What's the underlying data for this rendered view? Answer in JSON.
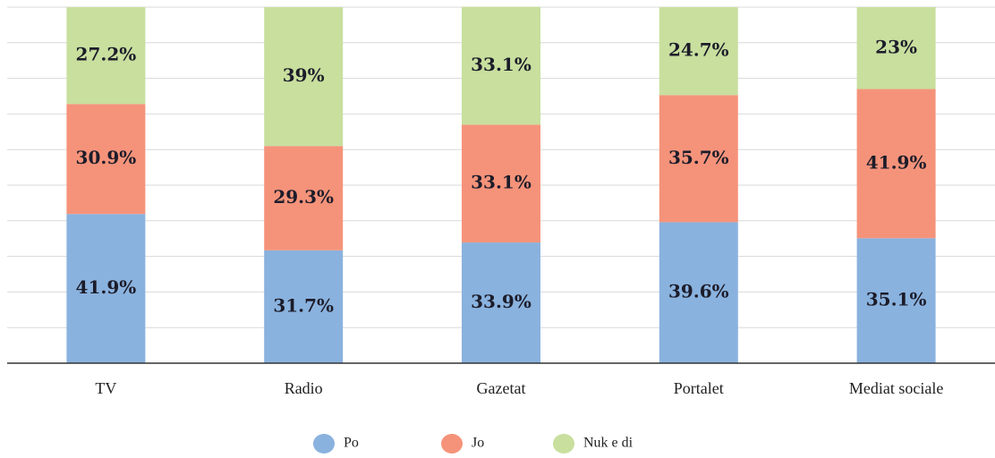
{
  "chart_data": {
    "type": "stacked_bar",
    "categories": [
      "TV",
      "Radio",
      "Gazetat",
      "Portalet",
      "Mediat sociale"
    ],
    "series": [
      {
        "name": "Po",
        "color": "#8ab2de",
        "values": [
          41.9,
          31.7,
          33.9,
          39.6,
          35.1
        ],
        "value_labels": [
          "41.9%",
          "31.7%",
          "33.9%",
          "39.6%",
          "35.1%"
        ]
      },
      {
        "name": "Jo",
        "color": "#f5937a",
        "values": [
          30.9,
          29.3,
          33.1,
          35.7,
          41.9
        ],
        "value_labels": [
          "30.9%",
          "29.3%",
          "33.1%",
          "35.7%",
          "41.9%"
        ]
      },
      {
        "name": "Nuk e di",
        "color": "#c8df9e",
        "values": [
          27.2,
          39,
          33.1,
          24.7,
          23
        ],
        "value_labels": [
          "27.2%",
          "39%",
          "33.1%",
          "24.7%",
          "23%"
        ]
      }
    ],
    "ylim": [
      0,
      100
    ],
    "yticks": [
      0,
      10,
      20,
      30,
      40,
      50,
      60,
      70,
      80,
      90,
      100
    ],
    "grid": true,
    "legend": "bottom"
  }
}
